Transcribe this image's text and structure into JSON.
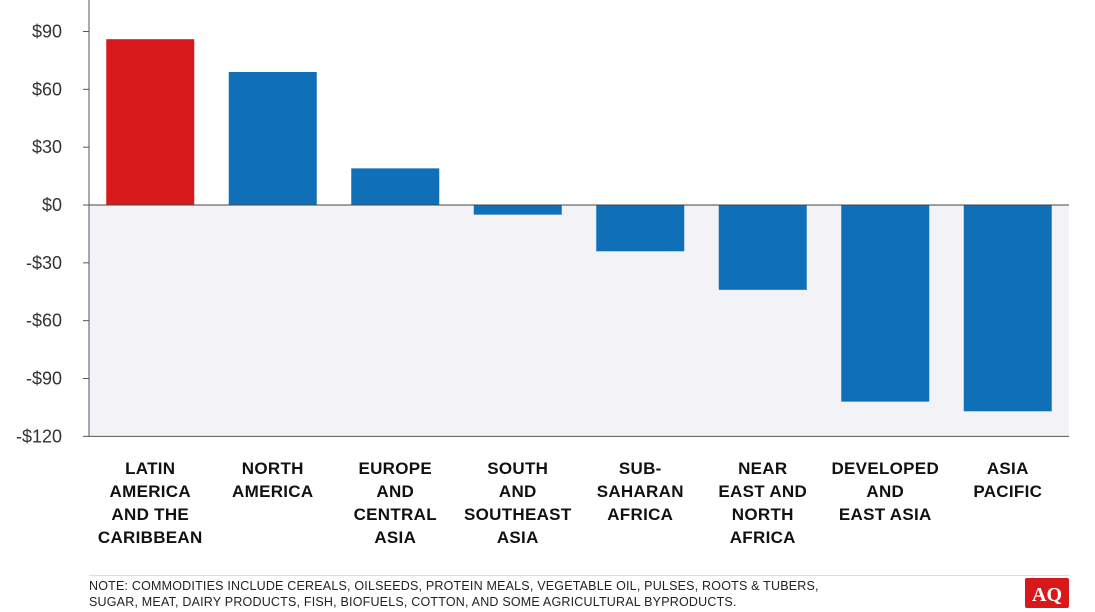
{
  "chart_data": {
    "type": "bar",
    "categories": [
      [
        "LATIN",
        "AMERICA",
        "AND THE",
        "CARIBBEAN"
      ],
      [
        "NORTH",
        "AMERICA"
      ],
      [
        "EUROPE",
        "AND",
        "CENTRAL",
        "ASIA"
      ],
      [
        "SOUTH",
        "AND",
        "SOUTHEAST",
        "ASIA"
      ],
      [
        "SUB-",
        "SAHARAN",
        "AFRICA"
      ],
      [
        "NEAR",
        "EAST AND",
        "NORTH",
        "AFRICA"
      ],
      [
        "DEVELOPED",
        "AND",
        "EAST ASIA"
      ],
      [
        "ASIA",
        "PACIFIC"
      ]
    ],
    "values": [
      86,
      69,
      19,
      -5,
      -24,
      -44,
      -102,
      -107
    ],
    "bar_colors": [
      "#d7191c",
      "#0f6fb7",
      "#0f6fb7",
      "#0f6fb7",
      "#0f6fb7",
      "#0f6fb7",
      "#0f6fb7",
      "#0f6fb7"
    ],
    "highlight_color": "#d7191c",
    "bar_color": "#0f6fb7",
    "negative_region_color": "#f3f2f6",
    "ylim": [
      -120,
      100
    ],
    "yticks": [
      90,
      60,
      30,
      0,
      -30,
      -60,
      -90,
      -120
    ],
    "ytick_labels": [
      "$90",
      "$60",
      "$30",
      "$0",
      "-$30",
      "-$60",
      "-$90",
      "-$120"
    ],
    "grid": false,
    "legend": "none"
  },
  "note": {
    "line1": "NOTE: COMMODITIES INCLUDE CEREALS, OILSEEDS, PROTEIN MEALS, VEGETABLE OIL, PULSES, ROOTS & TUBERS,",
    "line2": "SUGAR, MEAT, DAIRY PRODUCTS, FISH, BIOFUELS, COTTON, AND SOME AGRICULTURAL BYPRODUCTS."
  },
  "logo": {
    "text": "AQ"
  }
}
